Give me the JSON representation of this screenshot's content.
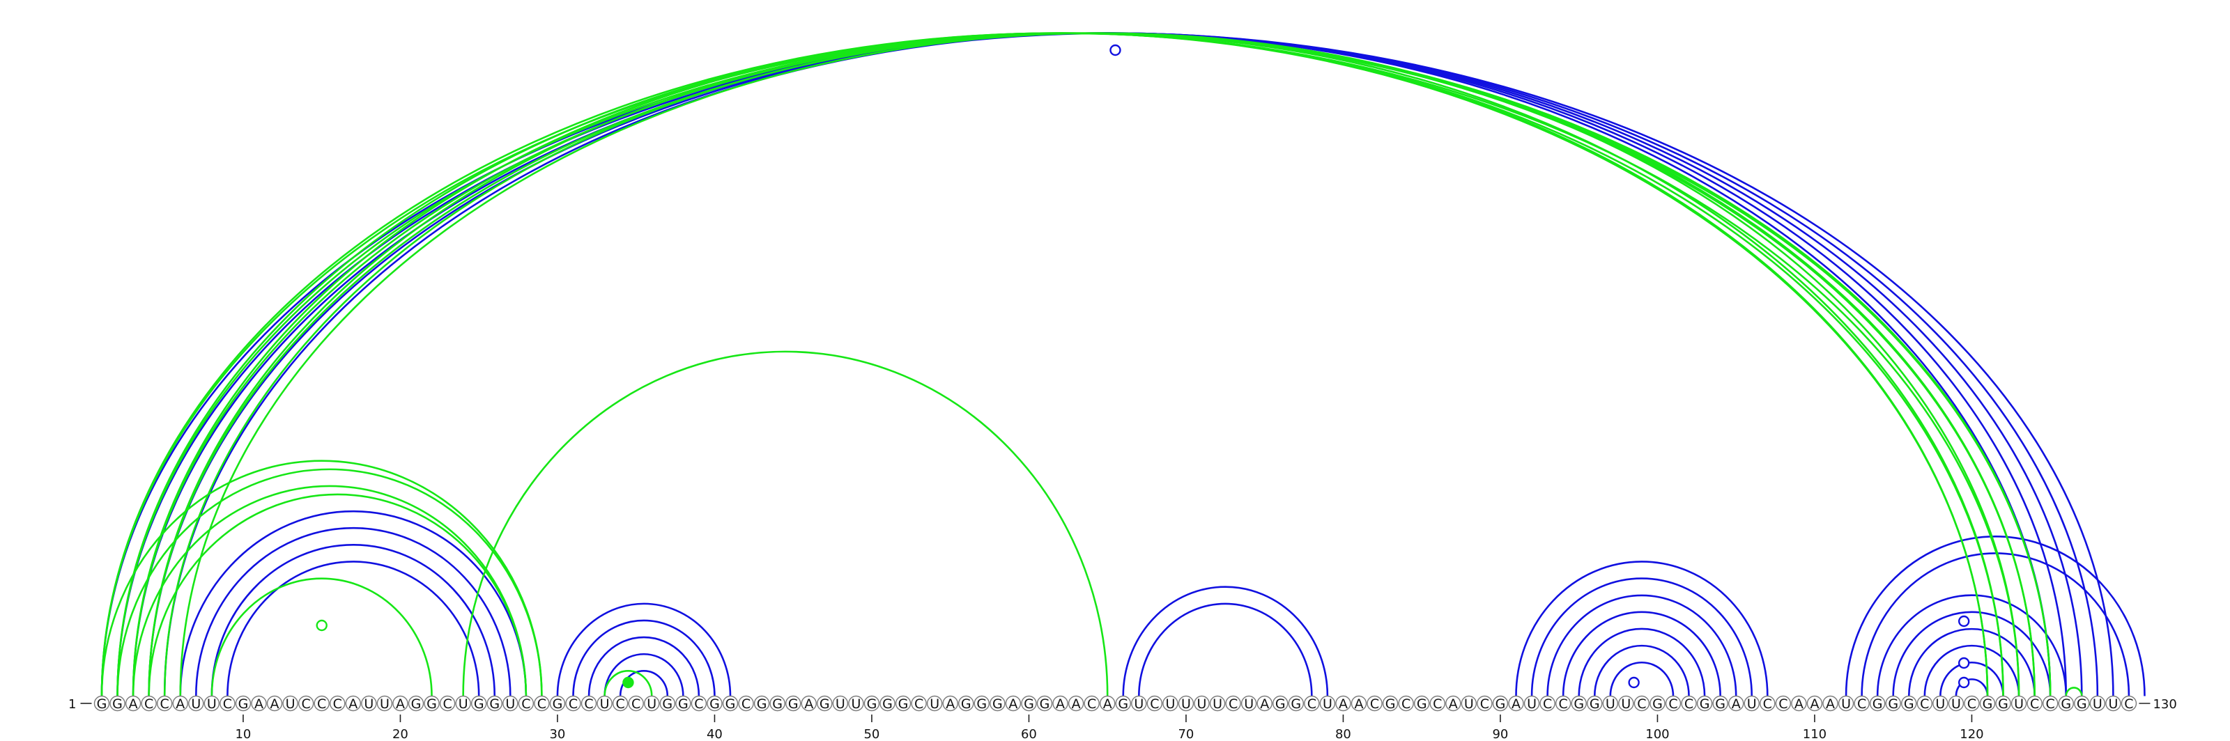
{
  "sequence": "GGACCAUUCGAAUCCCAUUAGGCUGGUCCGCCUCCUGGCGGCGGGAGUUGGGCUAGGGAGGAACAGUCUUUUCUAGGCUAACGCGCAUCGAUCCGGUUCGCCGGAUCCAAAUCGGGCUUCGGUCCGGUUC",
  "start_label": "1",
  "end_label": "130",
  "ticks": [
    10,
    20,
    30,
    40,
    50,
    60,
    70,
    80,
    90,
    100,
    110,
    120
  ],
  "colors": {
    "first_structure": "#1010e0",
    "second_structure": "#16e616",
    "markers": "#16e616"
  },
  "chart_data": {
    "type": "arc-diagram",
    "length": 130,
    "structures": [
      {
        "color": "#1010e0",
        "pairs": [
          [
            1,
            129
          ],
          [
            2,
            128
          ],
          [
            3,
            127
          ],
          [
            4,
            126
          ],
          [
            5,
            125
          ],
          [
            6,
            28
          ],
          [
            7,
            27
          ],
          [
            8,
            26
          ],
          [
            9,
            25
          ],
          [
            30,
            41
          ],
          [
            31,
            40
          ],
          [
            32,
            39
          ],
          [
            33,
            38
          ],
          [
            34,
            37
          ],
          [
            66,
            79
          ],
          [
            67,
            78
          ],
          [
            91,
            107
          ],
          [
            92,
            106
          ],
          [
            93,
            105
          ],
          [
            94,
            104
          ],
          [
            95,
            103
          ],
          [
            96,
            102
          ],
          [
            97,
            101
          ],
          [
            112,
            131
          ],
          [
            113,
            130
          ],
          [
            114,
            126
          ],
          [
            115,
            125
          ],
          [
            116,
            124
          ],
          [
            117,
            123
          ],
          [
            118,
            122
          ],
          [
            119,
            121
          ]
        ]
      },
      {
        "color": "#16e616",
        "pairs": [
          [
            1,
            123
          ],
          [
            2,
            122
          ],
          [
            3,
            121
          ],
          [
            4,
            121
          ],
          [
            5,
            122
          ],
          [
            6,
            123
          ],
          [
            1,
            29
          ],
          [
            2,
            29
          ],
          [
            3,
            28
          ],
          [
            4,
            28
          ],
          [
            8,
            22
          ],
          [
            24,
            65
          ],
          [
            33,
            36
          ],
          [
            3,
            124
          ],
          [
            4,
            124
          ],
          [
            2,
            125
          ],
          [
            1,
            125
          ],
          [
            126,
            127
          ],
          [
            128,
            127
          ]
        ]
      }
    ],
    "markers": [
      {
        "color": "#1010e0",
        "position": 65.5,
        "type": "open"
      },
      {
        "color": "#16e616",
        "position": 15,
        "type": "open"
      },
      {
        "color": "#16e616",
        "position": 34.5,
        "type": "filled"
      },
      {
        "color": "#1010e0",
        "position": 98.5,
        "type": "open"
      },
      {
        "color": "#1010e0",
        "position": 119.5,
        "type": "open"
      },
      {
        "color": "#1010e0",
        "position": 119.5,
        "type": "open"
      },
      {
        "color": "#1010e0",
        "position": 119.5,
        "type": "open"
      }
    ]
  }
}
